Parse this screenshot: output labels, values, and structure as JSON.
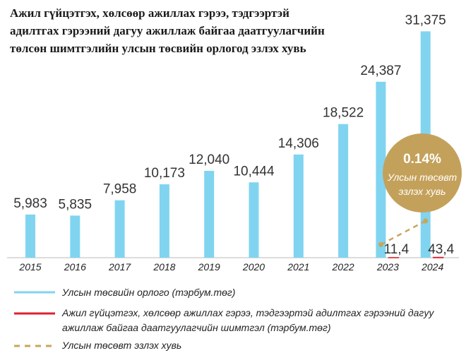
{
  "chart_data": {
    "type": "bar",
    "title": [
      "Ажил гүйцэтгэх, хөлсөөр ажиллах гэрээ, тэдгээртэй",
      "адилтгах гэрээний дагуу ажиллаж байгаа даатгуулагчийн",
      "төлсөн шимтгэлийн улсын төсвийн орлогод эзлэх хувь"
    ],
    "categories": [
      "2015",
      "2016",
      "2017",
      "2018",
      "2019",
      "2020",
      "2021",
      "2022",
      "2023",
      "2024"
    ],
    "series": [
      {
        "name": "Улсын төсвийн орлого (тэрбум.төг)",
        "color": "#80d4f0",
        "values": [
          5983,
          5835,
          7958,
          10173,
          12040,
          10444,
          14306,
          18522,
          24387,
          31375
        ],
        "value_labels": [
          "5,983",
          "5,835",
          "7,958",
          "10,173",
          "12,040",
          "10,444",
          "14,306",
          "18,522",
          "24,387",
          "31,375"
        ]
      },
      {
        "name": "Ажил гүйцэтгэх, хөлсөөр ажиллах гэрээ, тэдгээртэй адилтгах гэрээний дагуу ажиллаж байгаа даатгуулагчийн шимтгэл (тэрбум.төг)",
        "color": "#e0202f",
        "values": [
          null,
          null,
          null,
          null,
          null,
          null,
          null,
          null,
          11.4,
          43.4
        ],
        "value_labels": [
          null,
          null,
          null,
          null,
          null,
          null,
          null,
          null,
          "11,4",
          "43,4"
        ]
      },
      {
        "name": "Улсын төсөвт эзлэх хувь",
        "color": "#c9a55a",
        "axis": "y2",
        "line_style": "dashed",
        "values": [
          null,
          null,
          null,
          null,
          null,
          null,
          null,
          null,
          0.05,
          0.14
        ],
        "value_labels": [
          null,
          null,
          null,
          null,
          null,
          null,
          null,
          null,
          null,
          "0.14%"
        ]
      }
    ],
    "annotation": [
      "Улсын төсөвт",
      "эзлэх хувь"
    ],
    "ylim": [
      0,
      32000
    ],
    "y2lim": [
      0,
      0.88
    ]
  }
}
